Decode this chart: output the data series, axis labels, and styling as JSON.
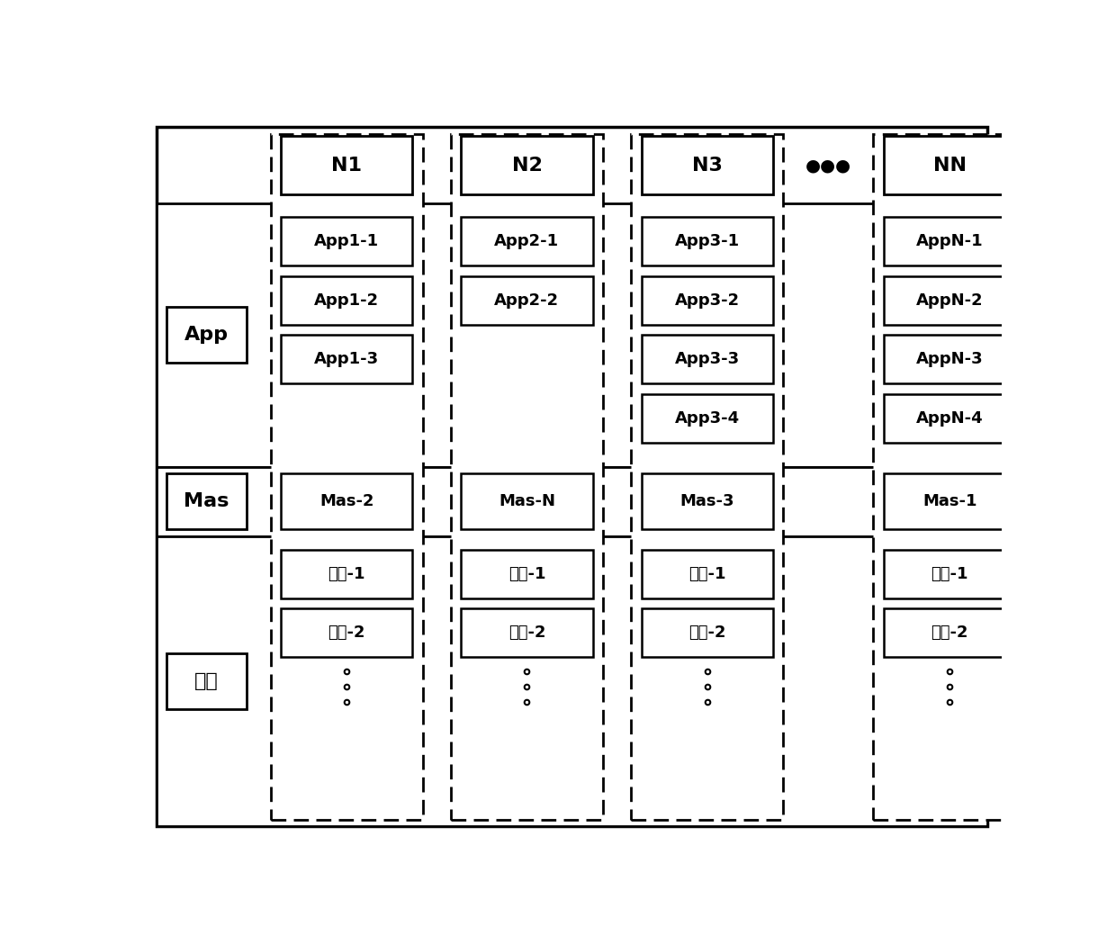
{
  "fig_width": 12.4,
  "fig_height": 10.49,
  "bg_color": "#ffffff",
  "node_labels": [
    "N1",
    "N2",
    "N3",
    "NN"
  ],
  "dots_label": "●●●",
  "col_label_App": "App",
  "col_label_Mas": "Mas",
  "col_label_Agent": "代理",
  "app_items": [
    [
      "App1-1",
      "App1-2",
      "App1-3"
    ],
    [
      "App2-1",
      "App2-2"
    ],
    [
      "App3-1",
      "App3-2",
      "App3-3",
      "App3-4"
    ],
    [
      "AppN-1",
      "AppN-2",
      "AppN-3",
      "AppN-4"
    ]
  ],
  "mas_items": [
    "Mas-2",
    "Mas-N",
    "Mas-3",
    "Mas-1"
  ],
  "agent_items": [
    [
      "代理-1",
      "代理-2"
    ],
    [
      "代理-1",
      "代理-2"
    ],
    [
      "代理-1",
      "代理-2"
    ],
    [
      "代理-1",
      "代理-2"
    ]
  ]
}
